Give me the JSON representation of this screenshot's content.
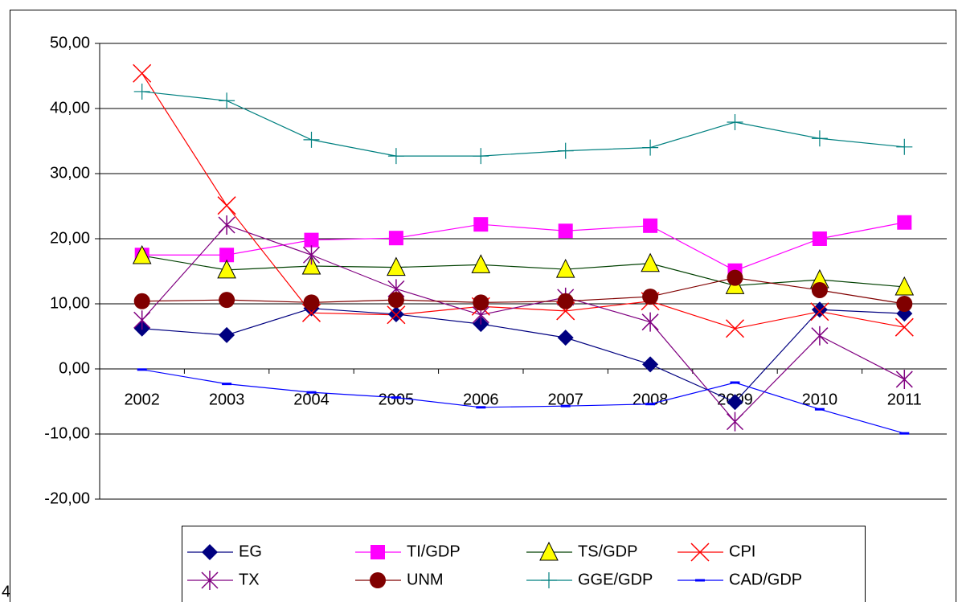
{
  "chart_data": {
    "type": "line",
    "categories": [
      "2002",
      "2003",
      "2004",
      "2005",
      "2006",
      "2007",
      "2008",
      "2009",
      "2010",
      "2011"
    ],
    "series": [
      {
        "name": "EG",
        "color": "#000080",
        "marker": "diamond",
        "values": [
          6.2,
          5.2,
          9.3,
          8.4,
          6.9,
          4.8,
          0.7,
          -5.1,
          9.1,
          8.5
        ]
      },
      {
        "name": "TI/GDP",
        "color": "#FF00FF",
        "marker": "square",
        "values": [
          17.5,
          17.5,
          19.8,
          20.1,
          22.2,
          21.2,
          22.0,
          15.1,
          20.0,
          22.5
        ]
      },
      {
        "name": "TS/GDP",
        "color": "#004000",
        "marker": "triangle",
        "marker_fill": "#FFFF00",
        "values": [
          17.4,
          15.2,
          15.8,
          15.6,
          16.0,
          15.3,
          16.2,
          12.8,
          13.7,
          12.6
        ]
      },
      {
        "name": "CPI",
        "color": "#FF0000",
        "marker": "x",
        "values": [
          45.4,
          25.1,
          8.6,
          8.3,
          9.6,
          8.9,
          10.4,
          6.2,
          8.8,
          6.4
        ]
      },
      {
        "name": "TX",
        "color": "#800080",
        "marker": "star",
        "values": [
          7.5,
          22.1,
          17.5,
          12.3,
          8.3,
          11.0,
          7.2,
          -8.1,
          5.1,
          -1.6
        ]
      },
      {
        "name": "UNM",
        "color": "#800000",
        "marker": "circle",
        "values": [
          10.4,
          10.6,
          10.2,
          10.6,
          10.2,
          10.4,
          11.1,
          14.0,
          12.1,
          10.0
        ]
      },
      {
        "name": "GGE/GDP",
        "color": "#008080",
        "marker": "plus",
        "values": [
          42.6,
          41.2,
          35.2,
          32.7,
          32.7,
          33.5,
          34.0,
          37.9,
          35.4,
          34.1
        ]
      },
      {
        "name": "CAD/GDP",
        "color": "#0000FF",
        "marker": "dash",
        "values": [
          -0.1,
          -2.3,
          -3.6,
          -4.4,
          -5.9,
          -5.7,
          -5.4,
          -2.1,
          -6.2,
          -9.9
        ]
      }
    ],
    "ylim": [
      -20,
      50
    ],
    "yticks": [
      {
        "value": -20,
        "label": "-20,00"
      },
      {
        "value": -10,
        "label": "-10,00"
      },
      {
        "value": 0,
        "label": "0,00"
      },
      {
        "value": 10,
        "label": "10,00"
      },
      {
        "value": 20,
        "label": "20,00"
      },
      {
        "value": 30,
        "label": "30,00"
      },
      {
        "value": 40,
        "label": "40,00"
      },
      {
        "value": 50,
        "label": "50,00"
      }
    ],
    "grid": true,
    "legend": "bottom",
    "corner_text": "4"
  }
}
